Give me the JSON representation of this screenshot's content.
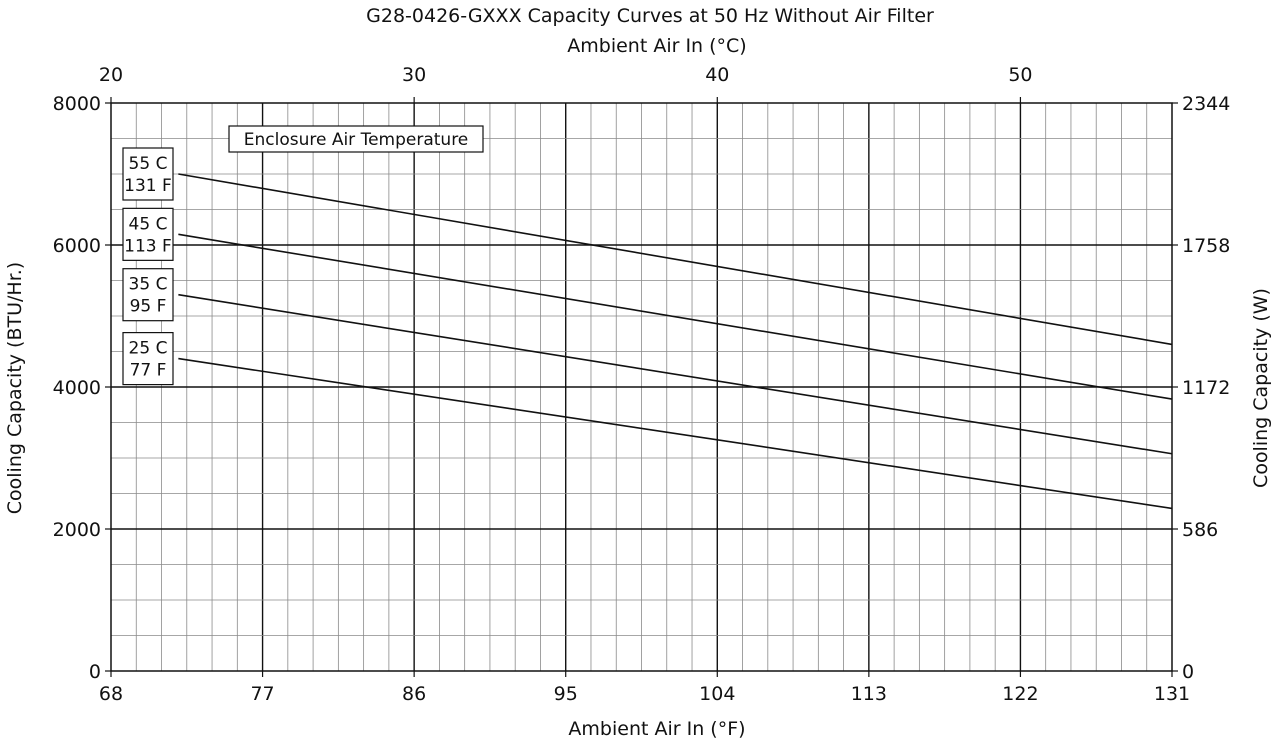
{
  "chart_data": {
    "type": "line",
    "title": "G28-0426-GXXX Capacity Curves at 50 Hz Without Air Filter",
    "xlabel": "Ambient Air In (°F)",
    "x2label": "Ambient Air In (°C)",
    "ylabel": "Cooling Capacity (BTU/Hr.)",
    "y2label": "Cooling Capacity (W)",
    "xlim": [
      68,
      131
    ],
    "ylim": [
      0,
      8000
    ],
    "x_ticks": [
      "68",
      "77",
      "86",
      "95",
      "104",
      "113",
      "122",
      "131"
    ],
    "x2_ticks": [
      "20",
      "30",
      "40",
      "50"
    ],
    "y_ticks": [
      "0",
      "2000",
      "4000",
      "6000",
      "8000"
    ],
    "y2_ticks": [
      "0",
      "586",
      "1172",
      "1758",
      "2344"
    ],
    "grid": true,
    "legend_title": "Enclosure Air Temperature",
    "series": [
      {
        "name": "55 C\n131 F",
        "label_lines": [
          "55 C",
          "131 F"
        ],
        "x": [
          72,
          131
        ],
        "y": [
          7000,
          4600
        ]
      },
      {
        "name": "45 C\n113 F",
        "label_lines": [
          "45 C",
          "113 F"
        ],
        "x": [
          72,
          131
        ],
        "y": [
          6150,
          3830
        ]
      },
      {
        "name": "35 C\n95 F",
        "label_lines": [
          "35 C",
          "95 F"
        ],
        "x": [
          72,
          131
        ],
        "y": [
          5300,
          3060
        ]
      },
      {
        "name": "25 C\n77 F",
        "label_lines": [
          "25 C",
          "77 F"
        ],
        "x": [
          72,
          131
        ],
        "y": [
          4400,
          2290
        ]
      }
    ]
  }
}
